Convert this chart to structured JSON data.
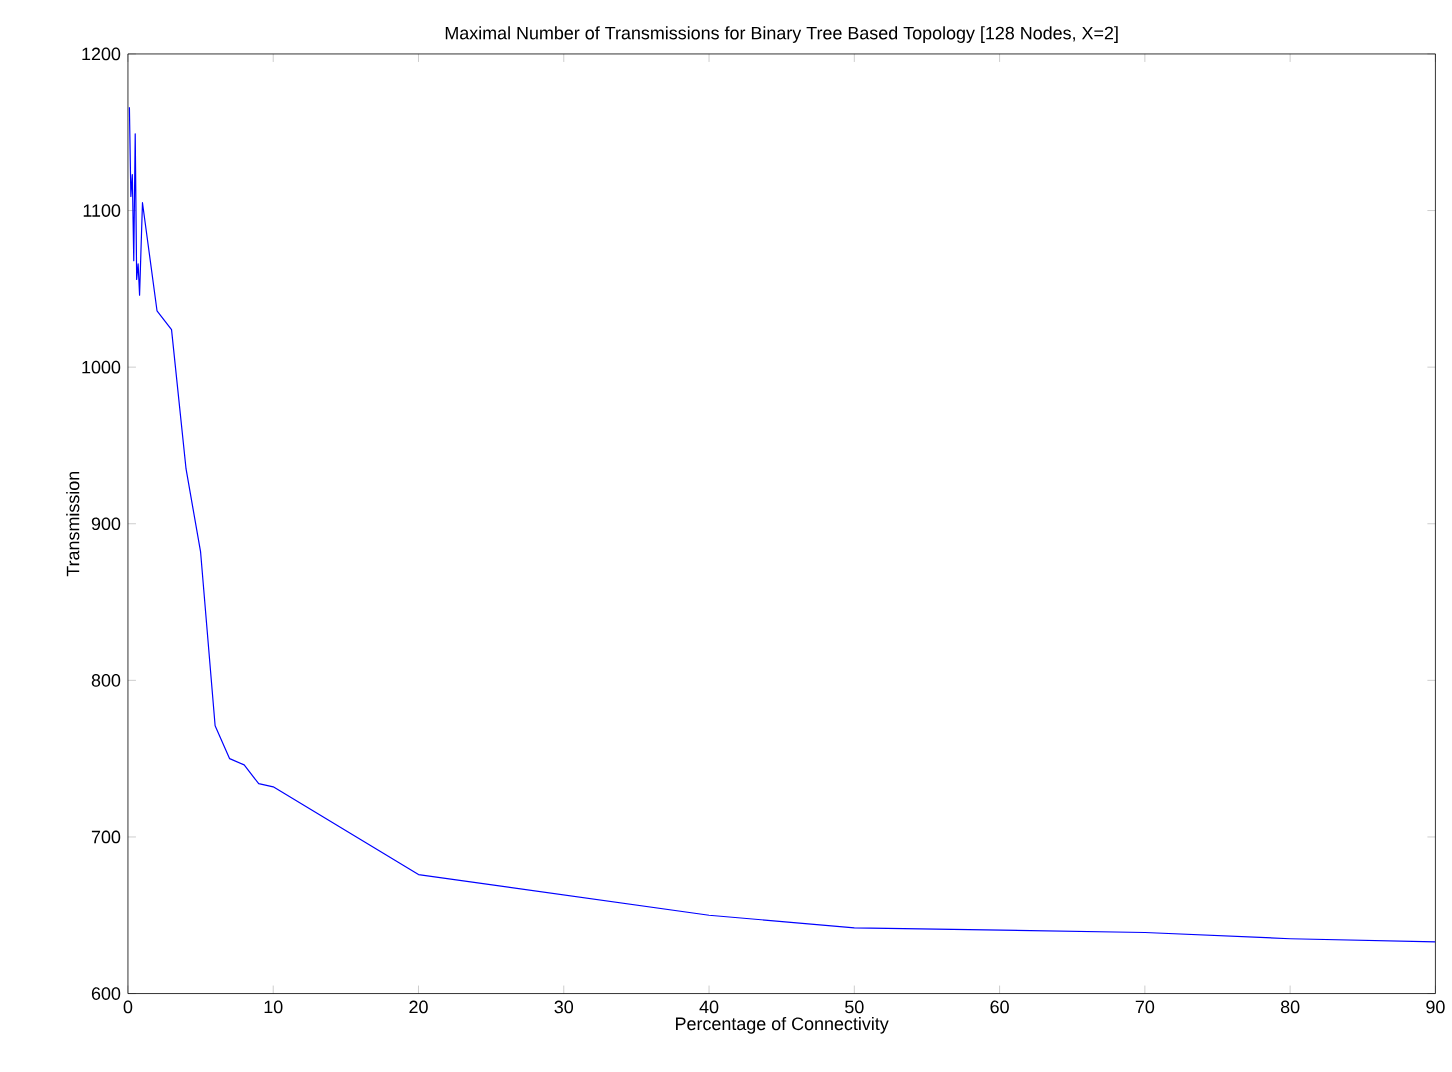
{
  "chart_data": {
    "type": "line",
    "title": "Maximal Number of Transmissions for Binary Tree Based Topology [128 Nodes, X=2]",
    "xlabel": "Percentage of Connectivity",
    "ylabel": "Transmission",
    "series": [
      {
        "color": "#0000ff",
        "x": [
          0.1,
          0.2,
          0.3,
          0.4,
          0.5,
          0.6,
          0.7,
          0.8,
          1,
          2,
          3,
          4,
          5,
          6,
          7,
          8,
          9,
          10,
          20,
          40,
          50,
          70,
          80,
          90
        ],
        "values": [
          1166,
          1109,
          1123,
          1068,
          1149,
          1056,
          1066,
          1046,
          1105,
          1036,
          1024,
          935,
          882,
          771,
          750,
          746,
          734,
          732,
          676,
          650,
          642,
          639,
          635,
          633
        ]
      }
    ],
    "xlim": [
      0,
      90
    ],
    "ylim": [
      600,
      1200
    ],
    "xticks": [
      0,
      10,
      20,
      30,
      40,
      50,
      60,
      70,
      80,
      90
    ],
    "yticks": [
      600,
      700,
      800,
      900,
      1000,
      1100,
      1200
    ]
  }
}
